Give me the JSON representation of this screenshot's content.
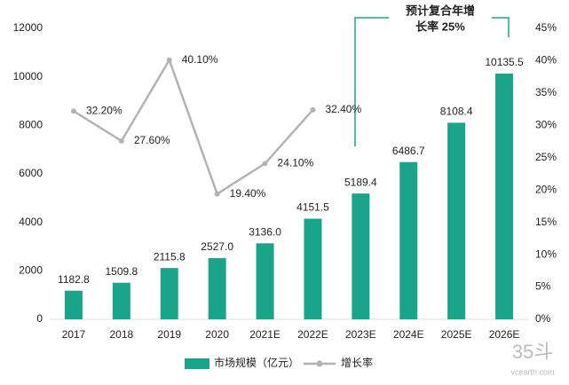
{
  "chart_data": {
    "type": "bar_line",
    "categories": [
      "2017",
      "2018",
      "2019",
      "2020",
      "2021E",
      "2022E",
      "2023E",
      "2024E",
      "2025E",
      "2026E"
    ],
    "series": [
      {
        "name": "市场规模（亿元）",
        "type": "bar",
        "color": "#1aa58a",
        "values": [
          1182.8,
          1509.8,
          2115.8,
          2527.0,
          3136.0,
          4151.5,
          5189.4,
          6486.7,
          8108.4,
          10135.5
        ],
        "value_labels": [
          "1182.8",
          "1509.8",
          "2115.8",
          "2527.0",
          "3136.0",
          "4151.5",
          "5189.4",
          "6486.7",
          "8108.4",
          "10135.5"
        ]
      },
      {
        "name": "增长率",
        "type": "line",
        "axis": "y2",
        "color": "#b3b3b3",
        "values": [
          32.2,
          27.6,
          40.1,
          19.4,
          24.1,
          32.4,
          null,
          null,
          null,
          null
        ],
        "value_labels": [
          "32.20%",
          "27.60%",
          "40.10%",
          "19.40%",
          "24.10%",
          "32.40%",
          null,
          null,
          null,
          null
        ]
      }
    ],
    "ylim": [
      0,
      12000
    ],
    "yticks": [
      0,
      2000,
      4000,
      6000,
      8000,
      10000,
      12000
    ],
    "y2lim": [
      0,
      45
    ],
    "y2ticks": [
      {
        "value": 0,
        "label": "0%"
      },
      {
        "value": 5,
        "label": "5%"
      },
      {
        "value": 10,
        "label": "10%"
      },
      {
        "value": 15,
        "label": "15%"
      },
      {
        "value": 20,
        "label": "20%"
      },
      {
        "value": 25,
        "label": "25%"
      },
      {
        "value": 30,
        "label": "30%"
      },
      {
        "value": 35,
        "label": "35%"
      },
      {
        "value": 40,
        "label": "40%"
      },
      {
        "value": 45,
        "label": "45%"
      }
    ],
    "annotation_lines": [
      "预计复合年增",
      "长率 25%"
    ],
    "legend": "bottom",
    "watermark": [
      "35斗",
      "vcearth.com"
    ]
  }
}
